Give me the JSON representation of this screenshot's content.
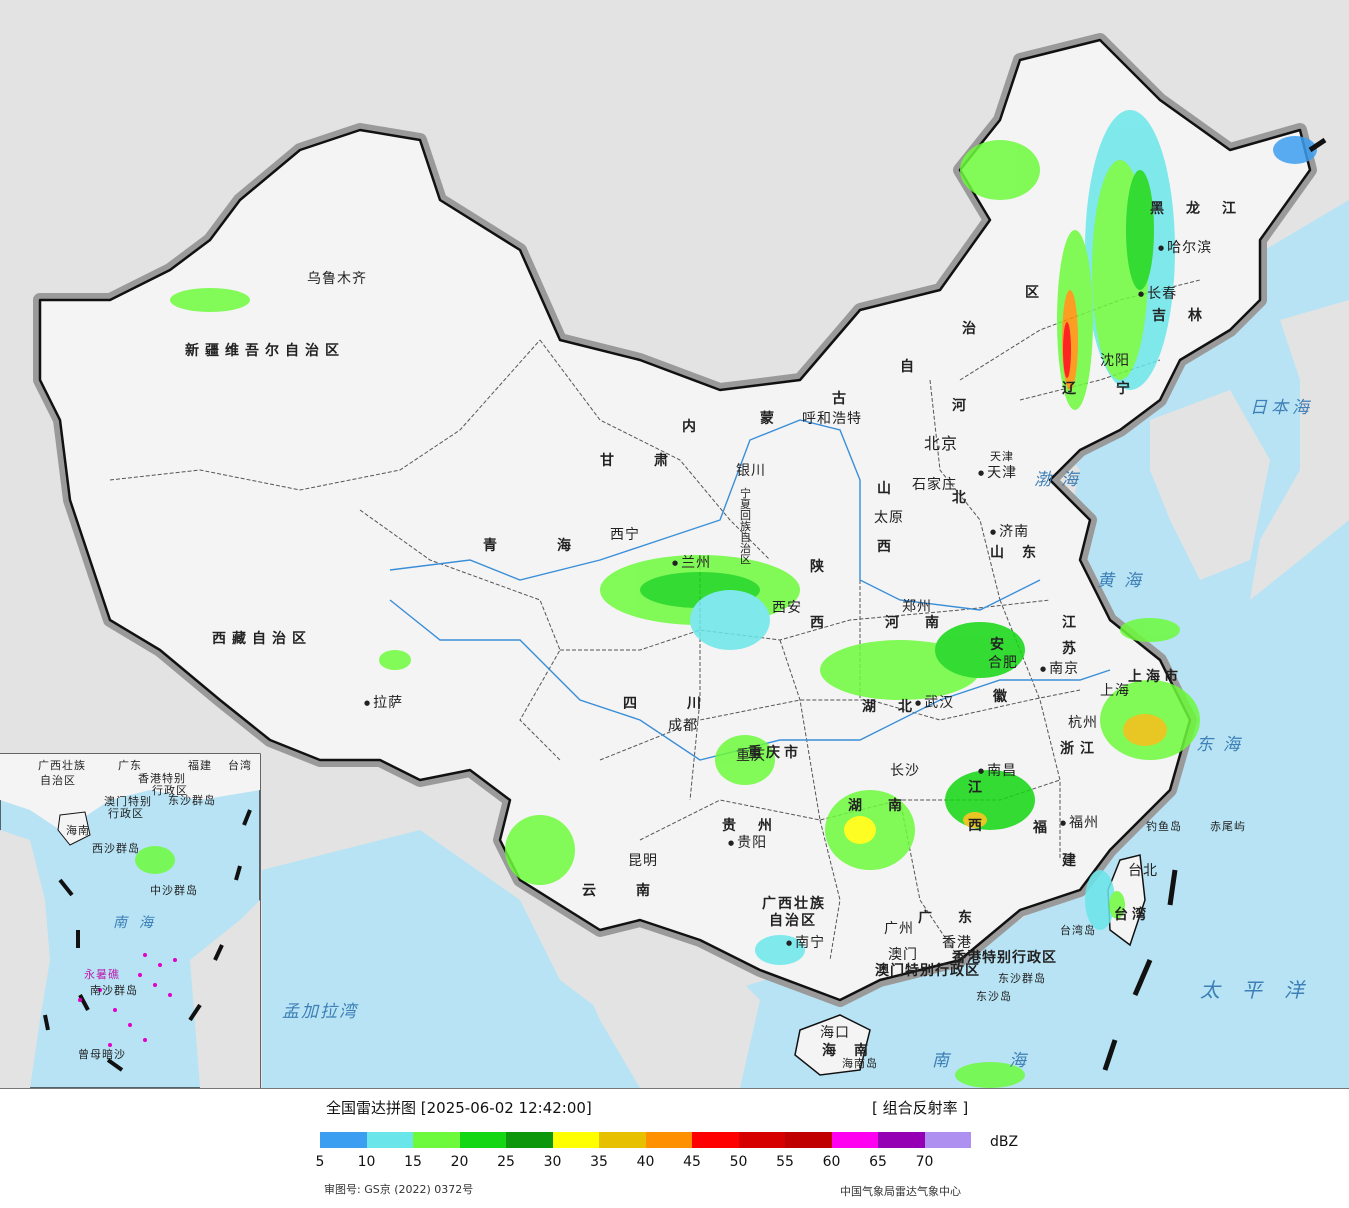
{
  "map": {
    "colors": {
      "land": "#f4f4f4",
      "outside": "#e3e3e3",
      "sea": "#b7e3f4",
      "border": "#111111"
    },
    "provinces": [
      {
        "id": "xinjiang",
        "text": "新疆维吾尔自治区"
      },
      {
        "id": "xizang",
        "text": "西藏自治区"
      },
      {
        "id": "qinghai",
        "text": "青海"
      },
      {
        "id": "gansu",
        "text": "甘肃"
      },
      {
        "id": "neimenggu-1",
        "text": "内"
      },
      {
        "id": "neimenggu-2",
        "text": "蒙"
      },
      {
        "id": "neimenggu-3",
        "text": "古"
      },
      {
        "id": "neimenggu-4",
        "text": "自"
      },
      {
        "id": "neimenggu-5",
        "text": "治"
      },
      {
        "id": "neimenggu-6",
        "text": "区"
      },
      {
        "id": "heilongjiang",
        "text": "黑龙江"
      },
      {
        "id": "jilin",
        "text": "吉林"
      },
      {
        "id": "liaoning",
        "text": "辽宁"
      },
      {
        "id": "hebei-1",
        "text": "河"
      },
      {
        "id": "hebei-2",
        "text": "北"
      },
      {
        "id": "shanxi-1",
        "text": "山"
      },
      {
        "id": "shanxi-2",
        "text": "西"
      },
      {
        "id": "shandong",
        "text": "山东"
      },
      {
        "id": "ningxia",
        "text": "宁夏回族自治区"
      },
      {
        "id": "shaanxi-1",
        "text": "陕"
      },
      {
        "id": "shaanxi-2",
        "text": "西"
      },
      {
        "id": "henan",
        "text": "河南"
      },
      {
        "id": "jiangsu-1",
        "text": "江"
      },
      {
        "id": "jiangsu-2",
        "text": "苏"
      },
      {
        "id": "anhui-1",
        "text": "安"
      },
      {
        "id": "anhui-2",
        "text": "徽"
      },
      {
        "id": "shanghai",
        "text": "上海市"
      },
      {
        "id": "hubei",
        "text": "湖北"
      },
      {
        "id": "sichuan",
        "text": "四川"
      },
      {
        "id": "chongqing",
        "text": "重庆市"
      },
      {
        "id": "zhejiang",
        "text": "浙江"
      },
      {
        "id": "jiangxi-1",
        "text": "江"
      },
      {
        "id": "jiangxi-2",
        "text": "西"
      },
      {
        "id": "hunan-1",
        "text": "湖"
      },
      {
        "id": "hunan-2",
        "text": "南"
      },
      {
        "id": "guizhou",
        "text": "贵州"
      },
      {
        "id": "fujian-1",
        "text": "福"
      },
      {
        "id": "fujian-2",
        "text": "建"
      },
      {
        "id": "yunnan",
        "text": "云南"
      },
      {
        "id": "guangxi-1",
        "text": "广西壮族"
      },
      {
        "id": "guangxi-2",
        "text": "自治区"
      },
      {
        "id": "guangdong",
        "text": "广东"
      },
      {
        "id": "hainan",
        "text": "海南"
      },
      {
        "id": "taiwan",
        "text": "台湾"
      },
      {
        "id": "hk",
        "text": "香港特别行政区"
      },
      {
        "id": "macau",
        "text": "澳门特别行政区"
      },
      {
        "id": "tianjin",
        "text": "天津"
      }
    ],
    "cities": [
      {
        "id": "urumqi",
        "text": "乌鲁木齐"
      },
      {
        "id": "lhasa",
        "text": "拉萨"
      },
      {
        "id": "xining",
        "text": "西宁"
      },
      {
        "id": "lanzhou",
        "text": "兰州"
      },
      {
        "id": "yinchuan",
        "text": "银川"
      },
      {
        "id": "hohhot",
        "text": "呼和浩特"
      },
      {
        "id": "beijing",
        "text": "北京"
      },
      {
        "id": "tianjin-city",
        "text": "天津"
      },
      {
        "id": "shijiazhuang",
        "text": "石家庄"
      },
      {
        "id": "taiyuan",
        "text": "太原"
      },
      {
        "id": "jinan",
        "text": "济南"
      },
      {
        "id": "zhengzhou",
        "text": "郑州"
      },
      {
        "id": "xian",
        "text": "西安"
      },
      {
        "id": "hefei",
        "text": "合肥"
      },
      {
        "id": "nanjing",
        "text": "南京"
      },
      {
        "id": "shanghai-city",
        "text": "上海"
      },
      {
        "id": "hangzhou",
        "text": "杭州"
      },
      {
        "id": "wuhan",
        "text": "武汉"
      },
      {
        "id": "chengdu",
        "text": "成都"
      },
      {
        "id": "chongqing-city",
        "text": "重庆"
      },
      {
        "id": "changsha",
        "text": "长沙"
      },
      {
        "id": "nanchang",
        "text": "南昌"
      },
      {
        "id": "fuzhou",
        "text": "福州"
      },
      {
        "id": "guiyang",
        "text": "贵阳"
      },
      {
        "id": "kunming",
        "text": "昆明"
      },
      {
        "id": "nanning",
        "text": "南宁"
      },
      {
        "id": "guangzhou",
        "text": "广州"
      },
      {
        "id": "hongkong",
        "text": "香港"
      },
      {
        "id": "macao",
        "text": "澳门"
      },
      {
        "id": "haikou",
        "text": "海口"
      },
      {
        "id": "taipei",
        "text": "台北"
      },
      {
        "id": "harbin",
        "text": "哈尔滨"
      },
      {
        "id": "changchun",
        "text": "长春"
      },
      {
        "id": "shenyang",
        "text": "沈阳"
      }
    ],
    "seas": [
      {
        "id": "bohai",
        "text": "渤海"
      },
      {
        "id": "huanghai",
        "text": "黄海"
      },
      {
        "id": "donghai",
        "text": "东海"
      },
      {
        "id": "nanhai",
        "text": "南海"
      },
      {
        "id": "japansea",
        "text": "日本海"
      },
      {
        "id": "pacific",
        "text": "太平洋"
      },
      {
        "id": "bengal",
        "text": "孟加拉湾"
      }
    ],
    "islands": [
      {
        "id": "diaoyu",
        "text": "钓鱼岛"
      },
      {
        "id": "chiwei",
        "text": "赤尾屿"
      },
      {
        "id": "taiwan-island",
        "text": "台湾岛"
      },
      {
        "id": "hainan-island",
        "text": "海南岛"
      },
      {
        "id": "dongsha-qundao",
        "text": "东沙群岛"
      },
      {
        "id": "dongsha-dao",
        "text": "东沙岛"
      }
    ],
    "inset_labels": [
      {
        "id": "in-gx",
        "text": "广西壮族"
      },
      {
        "id": "in-gx2",
        "text": "自治区"
      },
      {
        "id": "in-gd",
        "text": "广东"
      },
      {
        "id": "in-fj",
        "text": "福建"
      },
      {
        "id": "in-tw",
        "text": "台湾"
      },
      {
        "id": "in-hk",
        "text": "香港特别"
      },
      {
        "id": "in-hk2",
        "text": "行政区"
      },
      {
        "id": "in-mo",
        "text": "澳门特别"
      },
      {
        "id": "in-mo2",
        "text": "行政区"
      },
      {
        "id": "in-dongsha",
        "text": "东沙群岛"
      },
      {
        "id": "in-hn",
        "text": "海南"
      },
      {
        "id": "in-xisha",
        "text": "西沙群岛"
      },
      {
        "id": "in-zhongsha",
        "text": "中沙群岛"
      },
      {
        "id": "in-nanhai",
        "text": "南海"
      },
      {
        "id": "in-yongshu",
        "text": "永暑礁"
      },
      {
        "id": "in-nansha",
        "text": "南沙群岛"
      },
      {
        "id": "in-zengmu",
        "text": "曾母暗沙"
      }
    ]
  },
  "legend": {
    "title": "全国雷达拼图 [2025-06-02 12:42:00]",
    "product": "[ 组合反射率 ]",
    "unit": "dBZ",
    "colors": [
      "#3c9ef0",
      "#6ae6ea",
      "#6dfa3c",
      "#12d712",
      "#0c970c",
      "#ffff00",
      "#e7c000",
      "#ff9000",
      "#ff0000",
      "#d60000",
      "#c00000",
      "#ff00f0",
      "#9600b4",
      "#ad90f0"
    ],
    "ticks": [
      "5",
      "10",
      "15",
      "20",
      "25",
      "30",
      "35",
      "40",
      "45",
      "50",
      "55",
      "60",
      "65",
      "70"
    ],
    "approval": "审图号: GS京 (2022) 0372号",
    "source": "中国气象局雷达气象中心"
  }
}
